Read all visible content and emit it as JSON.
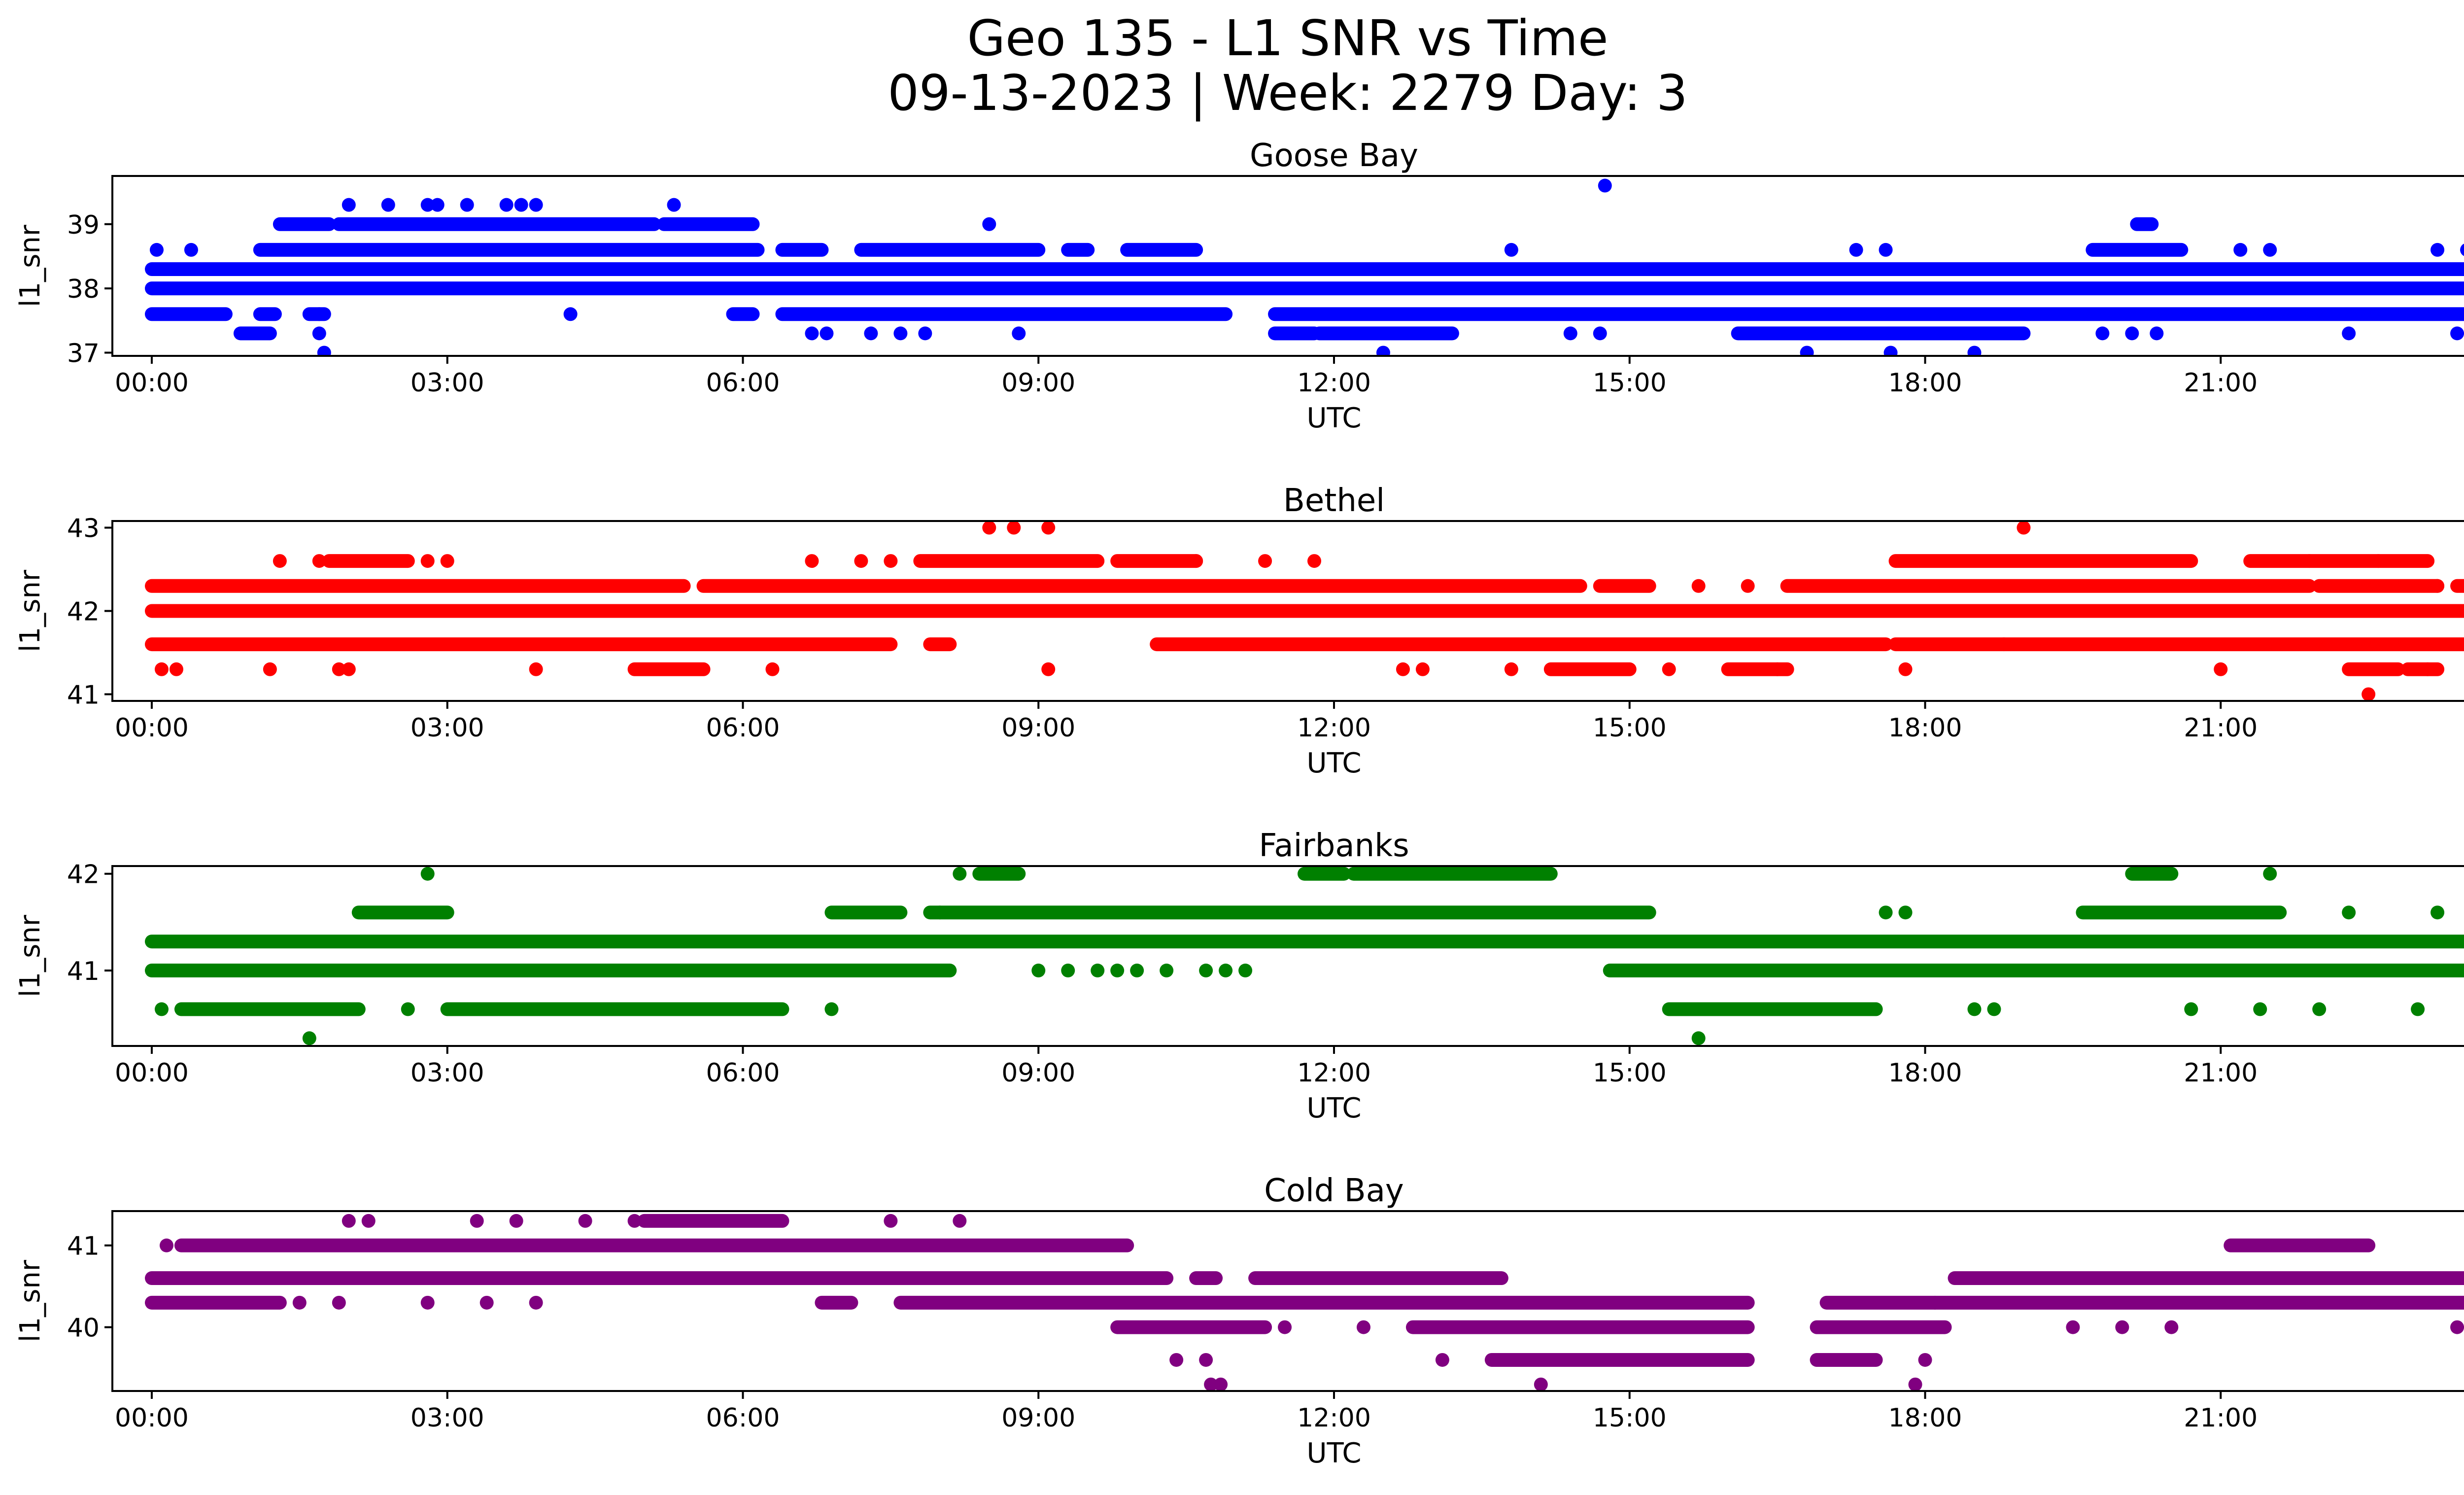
{
  "figure": {
    "title_line1": "Geo 135 - L1 SNR vs Time",
    "title_line2": "09-13-2023 | Week: 2279 Day: 3"
  },
  "chart_data": [
    {
      "type": "scatter",
      "title": "Goose Bay",
      "xlabel": "UTC",
      "ylabel": "l1_snr",
      "color": "#0000ff",
      "xlim": [
        -0.4,
        24.4
      ],
      "ylim": [
        36.95,
        39.75
      ],
      "yticks": [
        37,
        38,
        39
      ],
      "xtick_labels": [
        "00:00",
        "03:00",
        "06:00",
        "09:00",
        "12:00",
        "15:00",
        "18:00",
        "21:00",
        "00:00"
      ],
      "grid": false,
      "bands": [
        {
          "y": 38.3,
          "ranges": [
            [
              0.0,
              24.0
            ]
          ]
        },
        {
          "y": 38.0,
          "ranges": [
            [
              0.0,
              24.0
            ]
          ]
        },
        {
          "y": 37.6,
          "ranges": [
            [
              0.0,
              0.75
            ],
            [
              1.1,
              1.25
            ],
            [
              1.6,
              1.75
            ],
            [
              5.9,
              6.1
            ],
            [
              6.4,
              10.9
            ],
            [
              11.4,
              24.0
            ]
          ]
        },
        {
          "y": 38.6,
          "ranges": [
            [
              1.1,
              6.15
            ],
            [
              6.4,
              6.8
            ],
            [
              7.2,
              9.0
            ],
            [
              9.3,
              9.5
            ],
            [
              9.9,
              10.6
            ],
            [
              19.7,
              20.6
            ]
          ]
        },
        {
          "y": 39.0,
          "ranges": [
            [
              1.3,
              1.8
            ],
            [
              1.9,
              5.1
            ],
            [
              5.2,
              6.1
            ],
            [
              20.15,
              20.3
            ]
          ]
        },
        {
          "y": 37.3,
          "ranges": [
            [
              0.9,
              1.2
            ],
            [
              11.4,
              11.8
            ],
            [
              11.85,
              13.2
            ],
            [
              16.1,
              19.0
            ]
          ]
        }
      ],
      "points": [
        {
          "x": 0.05,
          "y": 38.6
        },
        {
          "x": 0.4,
          "y": 38.6
        },
        {
          "x": 1.7,
          "y": 37.3
        },
        {
          "x": 1.75,
          "y": 37.0
        },
        {
          "x": 1.7,
          "y": 37.6
        },
        {
          "x": 2.0,
          "y": 39.3
        },
        {
          "x": 2.4,
          "y": 39.3
        },
        {
          "x": 2.8,
          "y": 39.3
        },
        {
          "x": 2.9,
          "y": 39.3
        },
        {
          "x": 3.2,
          "y": 39.3
        },
        {
          "x": 3.6,
          "y": 39.3
        },
        {
          "x": 3.75,
          "y": 39.3
        },
        {
          "x": 3.9,
          "y": 39.3
        },
        {
          "x": 4.25,
          "y": 37.6
        },
        {
          "x": 5.3,
          "y": 39.3
        },
        {
          "x": 8.5,
          "y": 39.0
        },
        {
          "x": 6.7,
          "y": 37.3
        },
        {
          "x": 6.85,
          "y": 37.3
        },
        {
          "x": 7.3,
          "y": 37.3
        },
        {
          "x": 7.6,
          "y": 37.3
        },
        {
          "x": 7.85,
          "y": 37.3
        },
        {
          "x": 8.8,
          "y": 37.3
        },
        {
          "x": 12.5,
          "y": 37.0
        },
        {
          "x": 12.6,
          "y": 38.3
        },
        {
          "x": 13.8,
          "y": 38.6
        },
        {
          "x": 14.4,
          "y": 37.3
        },
        {
          "x": 14.75,
          "y": 39.6
        },
        {
          "x": 14.7,
          "y": 37.3
        },
        {
          "x": 16.8,
          "y": 37.0
        },
        {
          "x": 17.0,
          "y": 38.3
        },
        {
          "x": 17.3,
          "y": 38.6
        },
        {
          "x": 17.6,
          "y": 38.6
        },
        {
          "x": 17.65,
          "y": 37.0
        },
        {
          "x": 18.5,
          "y": 37.0
        },
        {
          "x": 19.8,
          "y": 37.3
        },
        {
          "x": 20.1,
          "y": 37.3
        },
        {
          "x": 20.35,
          "y": 37.3
        },
        {
          "x": 21.2,
          "y": 38.6
        },
        {
          "x": 21.5,
          "y": 38.6
        },
        {
          "x": 22.3,
          "y": 37.3
        },
        {
          "x": 23.2,
          "y": 38.6
        },
        {
          "x": 23.4,
          "y": 37.3
        },
        {
          "x": 23.5,
          "y": 38.6
        },
        {
          "x": 23.7,
          "y": 37.3
        },
        {
          "x": 23.8,
          "y": 38.6
        }
      ]
    },
    {
      "type": "scatter",
      "title": "Bethel",
      "xlabel": "UTC",
      "ylabel": "l1_snr",
      "color": "#ff0000",
      "xlim": [
        -0.4,
        24.4
      ],
      "ylim": [
        40.92,
        43.08
      ],
      "yticks": [
        41,
        42,
        43
      ],
      "xtick_labels": [
        "00:00",
        "03:00",
        "06:00",
        "09:00",
        "12:00",
        "15:00",
        "18:00",
        "21:00",
        "00:00"
      ],
      "grid": false,
      "bands": [
        {
          "y": 42.3,
          "ranges": [
            [
              0.0,
              5.4
            ],
            [
              5.6,
              14.5
            ],
            [
              14.7,
              15.2
            ],
            [
              16.6,
              21.9
            ],
            [
              22.0,
              23.2
            ],
            [
              23.4,
              24.0
            ]
          ]
        },
        {
          "y": 42.0,
          "ranges": [
            [
              0.0,
              24.0
            ]
          ]
        },
        {
          "y": 41.6,
          "ranges": [
            [
              0.0,
              7.5
            ],
            [
              7.9,
              8.1
            ],
            [
              10.2,
              17.6
            ],
            [
              17.7,
              24.0
            ]
          ]
        },
        {
          "y": 42.6,
          "ranges": [
            [
              1.8,
              2.6
            ],
            [
              7.8,
              9.6
            ],
            [
              9.8,
              10.6
            ],
            [
              17.7,
              20.7
            ],
            [
              21.3,
              23.1
            ]
          ]
        },
        {
          "y": 41.3,
          "ranges": [
            [
              4.9,
              5.6
            ],
            [
              14.2,
              15.0
            ],
            [
              16.0,
              16.6
            ],
            [
              22.3,
              22.8
            ],
            [
              22.9,
              23.2
            ]
          ]
        }
      ],
      "points": [
        {
          "x": 0.1,
          "y": 41.3
        },
        {
          "x": 0.25,
          "y": 41.3
        },
        {
          "x": 1.2,
          "y": 41.3
        },
        {
          "x": 1.3,
          "y": 42.6
        },
        {
          "x": 1.7,
          "y": 42.6
        },
        {
          "x": 1.9,
          "y": 41.3
        },
        {
          "x": 2.0,
          "y": 41.3
        },
        {
          "x": 2.8,
          "y": 42.6
        },
        {
          "x": 3.0,
          "y": 42.6
        },
        {
          "x": 3.9,
          "y": 41.3
        },
        {
          "x": 6.3,
          "y": 41.3
        },
        {
          "x": 6.7,
          "y": 42.6
        },
        {
          "x": 7.2,
          "y": 42.6
        },
        {
          "x": 7.5,
          "y": 42.6
        },
        {
          "x": 8.5,
          "y": 43.0
        },
        {
          "x": 8.75,
          "y": 43.0
        },
        {
          "x": 9.1,
          "y": 43.0
        },
        {
          "x": 9.1,
          "y": 41.3
        },
        {
          "x": 10.6,
          "y": 42.6
        },
        {
          "x": 11.3,
          "y": 42.6
        },
        {
          "x": 11.8,
          "y": 42.6
        },
        {
          "x": 12.7,
          "y": 41.3
        },
        {
          "x": 12.9,
          "y": 41.3
        },
        {
          "x": 13.8,
          "y": 41.3
        },
        {
          "x": 15.4,
          "y": 41.3
        },
        {
          "x": 15.7,
          "y": 42.3
        },
        {
          "x": 16.2,
          "y": 42.3
        },
        {
          "x": 16.5,
          "y": 41.3
        },
        {
          "x": 17.8,
          "y": 41.3
        },
        {
          "x": 18.8,
          "y": 41.6
        },
        {
          "x": 19.0,
          "y": 43.0
        },
        {
          "x": 21.0,
          "y": 41.3
        },
        {
          "x": 21.9,
          "y": 42.6
        },
        {
          "x": 22.6,
          "y": 42.6
        },
        {
          "x": 22.5,
          "y": 41.0
        },
        {
          "x": 23.1,
          "y": 41.3
        },
        {
          "x": 23.2,
          "y": 42.3
        },
        {
          "x": 23.7,
          "y": 41.3
        }
      ]
    },
    {
      "type": "scatter",
      "title": "Fairbanks",
      "xlabel": "UTC",
      "ylabel": "l1_snr",
      "color": "#008000",
      "xlim": [
        -0.4,
        24.4
      ],
      "ylim": [
        40.22,
        42.08
      ],
      "yticks": [
        41,
        42
      ],
      "xtick_labels": [
        "00:00",
        "03:00",
        "06:00",
        "09:00",
        "12:00",
        "15:00",
        "18:00",
        "21:00",
        "00:00"
      ],
      "grid": false,
      "bands": [
        {
          "y": 41.3,
          "ranges": [
            [
              0.0,
              24.0
            ]
          ]
        },
        {
          "y": 41.0,
          "ranges": [
            [
              0.0,
              8.1
            ],
            [
              14.8,
              24.0
            ]
          ]
        },
        {
          "y": 40.6,
          "ranges": [
            [
              0.3,
              2.1
            ],
            [
              3.0,
              6.4
            ],
            [
              15.4,
              17.5
            ]
          ]
        },
        {
          "y": 41.6,
          "ranges": [
            [
              2.1,
              3.0
            ],
            [
              6.9,
              7.6
            ],
            [
              7.9,
              15.2
            ],
            [
              19.6,
              21.6
            ]
          ]
        },
        {
          "y": 42.0,
          "ranges": [
            [
              8.4,
              8.8
            ],
            [
              11.7,
              12.1
            ],
            [
              12.2,
              14.2
            ],
            [
              20.1,
              20.5
            ]
          ]
        }
      ],
      "points": [
        {
          "x": 0.1,
          "y": 40.6
        },
        {
          "x": 1.6,
          "y": 40.3
        },
        {
          "x": 2.8,
          "y": 42.0
        },
        {
          "x": 2.6,
          "y": 40.6
        },
        {
          "x": 6.9,
          "y": 40.6
        },
        {
          "x": 8.2,
          "y": 42.0
        },
        {
          "x": 8.0,
          "y": 41.6
        },
        {
          "x": 9.0,
          "y": 41.0
        },
        {
          "x": 9.3,
          "y": 41.0
        },
        {
          "x": 9.6,
          "y": 41.0
        },
        {
          "x": 9.8,
          "y": 41.0
        },
        {
          "x": 10.0,
          "y": 41.0
        },
        {
          "x": 10.3,
          "y": 41.0
        },
        {
          "x": 10.7,
          "y": 41.0
        },
        {
          "x": 10.9,
          "y": 41.0
        },
        {
          "x": 11.1,
          "y": 41.0
        },
        {
          "x": 15.7,
          "y": 40.3
        },
        {
          "x": 17.6,
          "y": 41.6
        },
        {
          "x": 17.8,
          "y": 41.6
        },
        {
          "x": 18.5,
          "y": 40.6
        },
        {
          "x": 18.7,
          "y": 40.6
        },
        {
          "x": 21.5,
          "y": 42.0
        },
        {
          "x": 20.7,
          "y": 40.6
        },
        {
          "x": 21.4,
          "y": 40.6
        },
        {
          "x": 22.0,
          "y": 40.6
        },
        {
          "x": 22.3,
          "y": 41.6
        },
        {
          "x": 23.0,
          "y": 40.6
        },
        {
          "x": 23.6,
          "y": 40.6
        },
        {
          "x": 23.9,
          "y": 41.6
        },
        {
          "x": 23.2,
          "y": 41.6
        }
      ]
    },
    {
      "type": "scatter",
      "title": "Cold Bay",
      "xlabel": "UTC",
      "ylabel": "l1_snr",
      "color": "#800080",
      "xlim": [
        -0.4,
        24.4
      ],
      "ylim": [
        39.22,
        41.42
      ],
      "yticks": [
        40,
        41
      ],
      "xtick_labels": [
        "00:00",
        "03:00",
        "06:00",
        "09:00",
        "12:00",
        "15:00",
        "18:00",
        "21:00",
        "00:00"
      ],
      "grid": false,
      "bands": [
        {
          "y": 40.6,
          "ranges": [
            [
              0.0,
              10.3
            ],
            [
              10.6,
              10.8
            ],
            [
              11.2,
              13.7
            ],
            [
              18.3,
              24.0
            ]
          ]
        },
        {
          "y": 40.3,
          "ranges": [
            [
              0.0,
              1.3
            ],
            [
              6.8,
              7.1
            ],
            [
              7.6,
              16.2
            ],
            [
              17.0,
              24.0
            ]
          ]
        },
        {
          "y": 41.0,
          "ranges": [
            [
              0.3,
              9.9
            ],
            [
              21.1,
              22.5
            ],
            [
              23.8,
              24.0
            ]
          ]
        },
        {
          "y": 40.0,
          "ranges": [
            [
              9.8,
              11.3
            ],
            [
              12.8,
              16.2
            ],
            [
              16.9,
              18.2
            ]
          ]
        },
        {
          "y": 39.6,
          "ranges": [
            [
              13.6,
              16.2
            ],
            [
              16.9,
              17.5
            ]
          ]
        },
        {
          "y": 41.3,
          "ranges": [
            [
              5.0,
              6.4
            ]
          ]
        }
      ],
      "points": [
        {
          "x": 0.15,
          "y": 41.0
        },
        {
          "x": 1.5,
          "y": 40.3
        },
        {
          "x": 1.9,
          "y": 40.3
        },
        {
          "x": 2.0,
          "y": 41.3
        },
        {
          "x": 2.2,
          "y": 41.3
        },
        {
          "x": 3.3,
          "y": 41.3
        },
        {
          "x": 3.7,
          "y": 41.3
        },
        {
          "x": 2.8,
          "y": 40.3
        },
        {
          "x": 3.4,
          "y": 40.3
        },
        {
          "x": 3.9,
          "y": 40.3
        },
        {
          "x": 4.4,
          "y": 41.3
        },
        {
          "x": 4.9,
          "y": 41.3
        },
        {
          "x": 7.5,
          "y": 41.3
        },
        {
          "x": 8.2,
          "y": 41.3
        },
        {
          "x": 10.4,
          "y": 39.6
        },
        {
          "x": 10.7,
          "y": 39.6
        },
        {
          "x": 10.75,
          "y": 39.3
        },
        {
          "x": 10.85,
          "y": 39.3
        },
        {
          "x": 11.5,
          "y": 40.0
        },
        {
          "x": 12.3,
          "y": 40.0
        },
        {
          "x": 13.1,
          "y": 39.6
        },
        {
          "x": 14.1,
          "y": 39.3
        },
        {
          "x": 17.9,
          "y": 39.3
        },
        {
          "x": 18.0,
          "y": 39.6
        },
        {
          "x": 18.1,
          "y": 40.3
        },
        {
          "x": 19.5,
          "y": 40.0
        },
        {
          "x": 20.0,
          "y": 40.0
        },
        {
          "x": 20.5,
          "y": 40.0
        },
        {
          "x": 23.4,
          "y": 40.0
        },
        {
          "x": 23.6,
          "y": 41.0
        }
      ]
    }
  ]
}
